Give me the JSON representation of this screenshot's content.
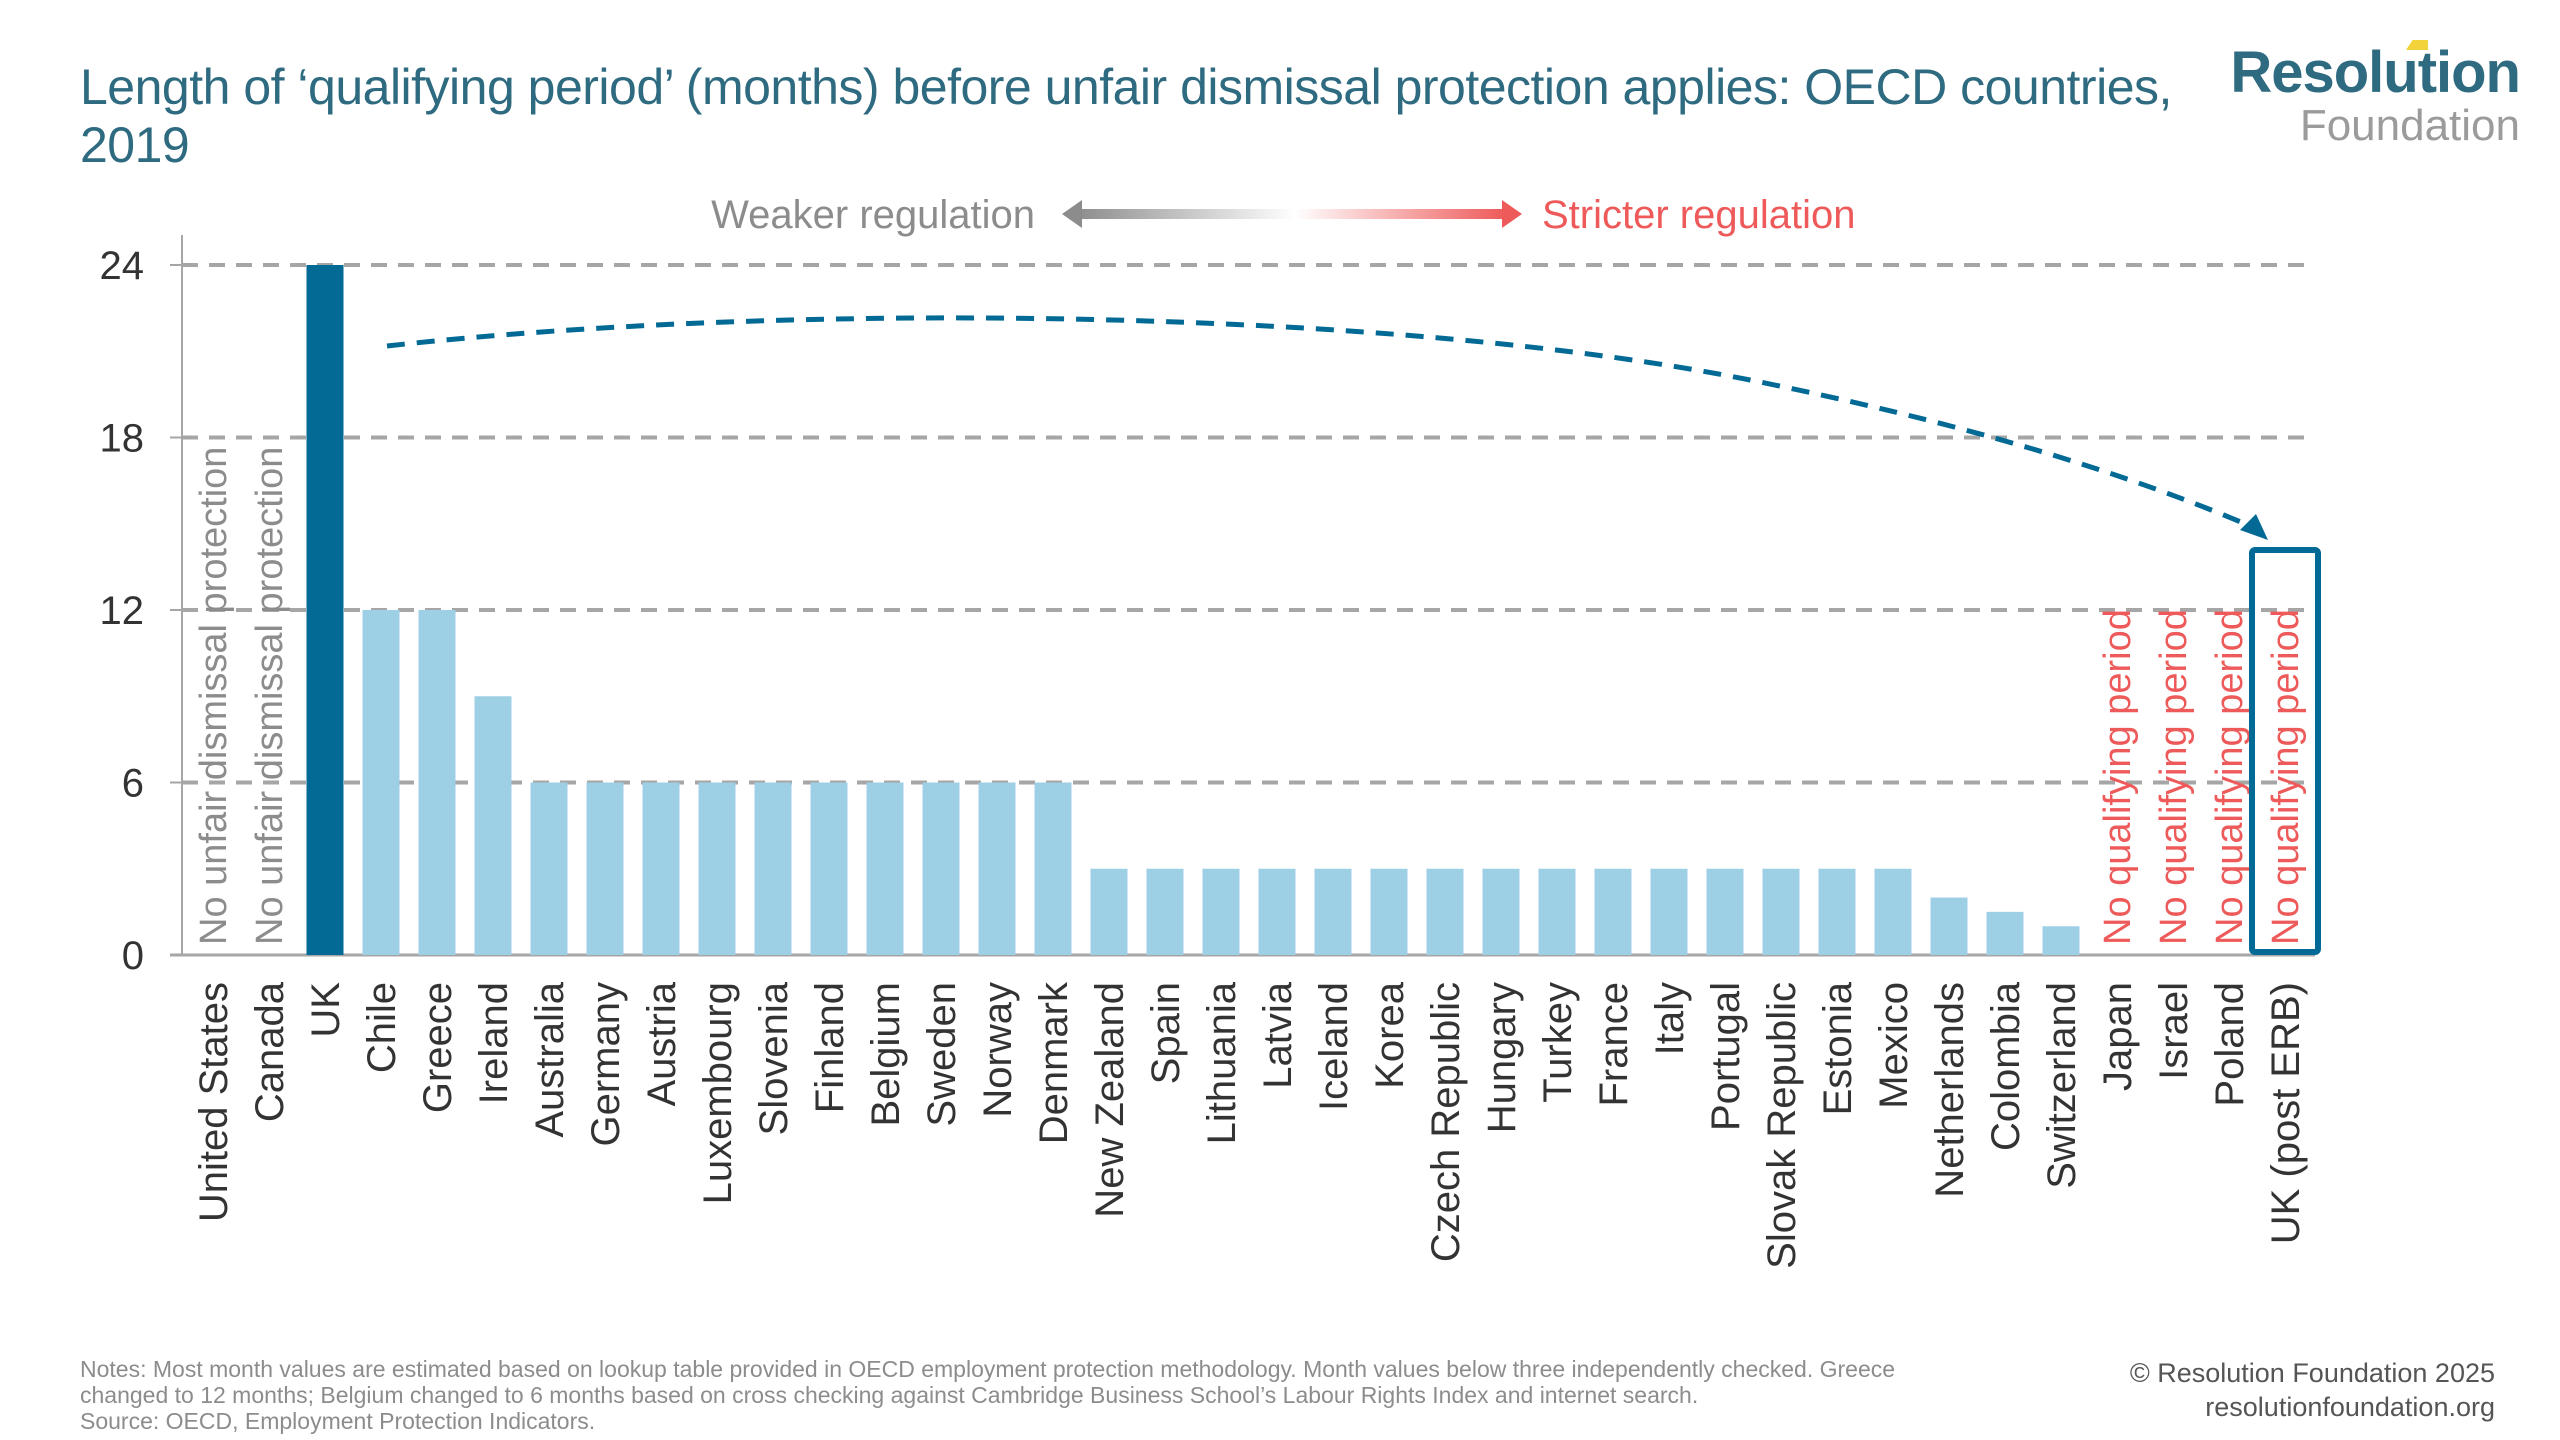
{
  "header": {
    "title": "Length of ‘qualifying period’ (months) before unfair dismissal protection applies: OECD countries, 2019",
    "logo_top": "Resolution",
    "logo_bottom": "Foundation"
  },
  "colors": {
    "title": "#2E6A80",
    "uk_bar": "#036A95",
    "other_bar": "#9DCFE5",
    "weaker": "#8C8C8C",
    "stricter": "#EE5A5A",
    "gridline": "#A6A6A6",
    "curve": "#036A95",
    "logo_accent": "#F2D43A"
  },
  "chart_data": {
    "type": "bar",
    "title": "Length of ‘qualifying period’ (months) before unfair dismissal protection applies: OECD countries, 2019",
    "xlabel": "",
    "ylabel": "",
    "ylim": [
      0,
      24
    ],
    "yticks": [
      0,
      6,
      12,
      18,
      24
    ],
    "grid": true,
    "categories": [
      "United States",
      "Canada",
      "UK",
      "Chile",
      "Greece",
      "Ireland",
      "Australia",
      "Germany",
      "Austria",
      "Luxembourg",
      "Slovenia",
      "Finland",
      "Belgium",
      "Sweden",
      "Norway",
      "Denmark",
      "New Zealand",
      "Spain",
      "Lithuania",
      "Latvia",
      "Iceland",
      "Korea",
      "Czech Republic",
      "Hungary",
      "Turkey",
      "France",
      "Italy",
      "Portugal",
      "Slovak Republic",
      "Estonia",
      "Mexico",
      "Netherlands",
      "Colombia",
      "Switzerland",
      "Japan",
      "Israel",
      "Poland",
      "UK (post ERB)"
    ],
    "values": [
      null,
      null,
      24,
      12,
      12,
      9,
      6,
      6,
      6,
      6,
      6,
      6,
      6,
      6,
      6,
      6,
      3,
      3,
      3,
      3,
      3,
      3,
      3,
      3,
      3,
      3,
      3,
      3,
      3,
      3,
      3,
      2,
      1.5,
      1,
      0,
      0,
      0,
      0
    ],
    "highlight": [
      "UK"
    ],
    "highlight_box": "UK (post ERB)",
    "bar_annotations": [
      {
        "category": "United States",
        "text": "No unfair dismissal protection",
        "style": "weaker"
      },
      {
        "category": "Canada",
        "text": "No unfair dismissal protection",
        "style": "weaker"
      },
      {
        "category": "Japan",
        "text": "No qualifying period",
        "style": "stricter"
      },
      {
        "category": "Israel",
        "text": "No qualifying period",
        "style": "stricter"
      },
      {
        "category": "Poland",
        "text": "No qualifying period",
        "style": "stricter"
      },
      {
        "category": "UK (post ERB)",
        "text": "No qualifying period",
        "style": "stricter"
      }
    ],
    "legend": {
      "weaker_label": "Weaker regulation",
      "stricter_label": "Stricter regulation",
      "placement": "top-center"
    },
    "annotation_arrow": {
      "from": "UK",
      "to": "UK (post ERB)",
      "style": "dashed-curve"
    }
  },
  "footer": {
    "notes_line1": "Notes: Most month values are estimated based on lookup table provided in OECD employment protection methodology. Month values below three independently checked. Greece",
    "notes_line2": "changed to 12 months; Belgium changed to 6 months based on cross checking against Cambridge Business School’s Labour Rights Index and internet search.",
    "source": "Source: OECD, Employment Protection Indicators.",
    "copyright": "© Resolution Foundation 2025",
    "website": "resolutionfoundation.org"
  }
}
